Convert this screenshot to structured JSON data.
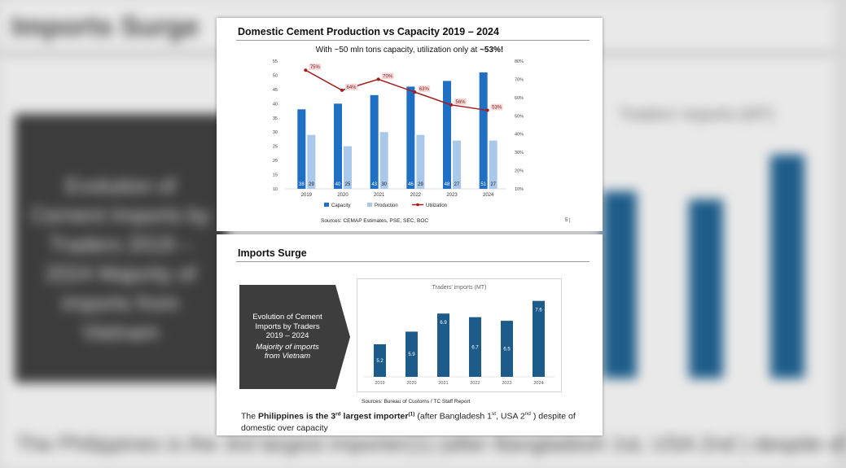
{
  "background": {
    "title": "Imports Surge",
    "box_text": "Evolution of Cement Imports by Traders 2019 – 2024 Majority of imports from Vietnam",
    "caption": "Traders' imports (MT)",
    "footer": "The Philippines is the 3rd largest importer(1) (after Bangladesh 1st, USA 2nd ) despite of"
  },
  "slide1": {
    "title": "Domestic Cement Production vs Capacity 2019 – 2024",
    "subtitle_prefix": "With ~50 mln tons capacity, utilization only at ",
    "subtitle_emphasis": "~53%!",
    "source": "Sources: CEMAP Estimates, PSE, SEC, BOC",
    "page_number": "5 |",
    "chart_data": {
      "type": "bar",
      "categories": [
        "2019",
        "2020",
        "2021",
        "2022",
        "2023",
        "2024"
      ],
      "series": [
        {
          "name": "Capacity",
          "type": "bar",
          "color": "#1f6fc5",
          "values": [
            38,
            40,
            43,
            46,
            48,
            51
          ],
          "labels": [
            "38",
            "40",
            "43",
            "46",
            "48",
            "51"
          ]
        },
        {
          "name": "Production",
          "type": "bar",
          "color": "#a9c8ea",
          "values": [
            29,
            25,
            30,
            29,
            27,
            27
          ],
          "labels": [
            "29",
            "25",
            "30",
            "29",
            "27",
            "27"
          ]
        },
        {
          "name": "Utilization",
          "type": "line",
          "axis": "right",
          "color": "#a31d1d",
          "values": [
            75,
            64,
            70,
            63,
            56,
            53
          ],
          "labels": [
            "75%",
            "64%",
            "70%",
            "63%",
            "56%",
            "53%"
          ]
        }
      ],
      "ylim": [
        10,
        55
      ],
      "yticks": [
        "10",
        "15",
        "20",
        "25",
        "30",
        "35",
        "40",
        "45",
        "50",
        "55"
      ],
      "y2lim": [
        10,
        80
      ],
      "y2ticks": [
        "10%",
        "20%",
        "30%",
        "40%",
        "50%",
        "60%",
        "70%",
        "80%"
      ],
      "legend": "bottom",
      "grid": false
    }
  },
  "slide2": {
    "title": "Imports Surge",
    "arrow_lines": [
      "Evolution of Cement",
      "Imports by Traders",
      "2019 – 2024"
    ],
    "arrow_italic": [
      "Majority of imports",
      "from Vietnam"
    ],
    "source": "Sources: Bureau of Customs / TC Staff Report",
    "footnote": {
      "t1": "The ",
      "b1": "Philippines is the 3",
      "b1sup": "rd",
      "b2": " largest importer",
      "b2sup": "(1)",
      "t2": " (after Bangladesh 1",
      "t2sup": "st",
      "t3": ", USA 2",
      "t3sup": "nd",
      "t4": " ) despite of domestic over capacity"
    },
    "chart_data": {
      "type": "bar",
      "title": "Traders' imports (MT)",
      "categories": [
        "2019",
        "2020",
        "2021",
        "2022",
        "2023",
        "2024"
      ],
      "values": [
        5.2,
        5.9,
        6.9,
        6.7,
        6.5,
        7.6
      ],
      "labels": [
        "5.2",
        "5.9",
        "6.9",
        "6.7",
        "6.5",
        "7.6"
      ],
      "ylim": [
        3.4,
        7.9
      ],
      "color": "#1d5c8a",
      "grid": false
    }
  }
}
